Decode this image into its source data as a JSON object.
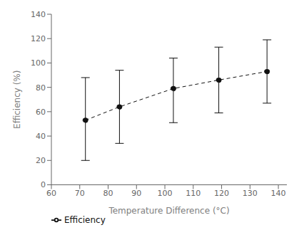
{
  "chart_data": {
    "type": "line",
    "xlabel": "Temperature Difference (°C)",
    "ylabel": "Efficiency (%)",
    "x": [
      72,
      84,
      103,
      119,
      136
    ],
    "series": [
      {
        "name": "Efficiency",
        "color": "#111111",
        "marker": "circle",
        "line_style": "dashed",
        "values": [
          53,
          64,
          79,
          86,
          93
        ],
        "error_upper": [
          35,
          30,
          25,
          27,
          26
        ],
        "error_lower": [
          33,
          30,
          28,
          27,
          26
        ]
      }
    ],
    "xlim": [
      60,
      143
    ],
    "ylim": [
      0,
      140
    ],
    "xticks": [
      60,
      70,
      80,
      90,
      100,
      110,
      120,
      130,
      140
    ],
    "yticks": [
      0,
      20,
      40,
      60,
      80,
      100,
      120,
      140
    ],
    "legend": "bottom",
    "grid": false
  }
}
